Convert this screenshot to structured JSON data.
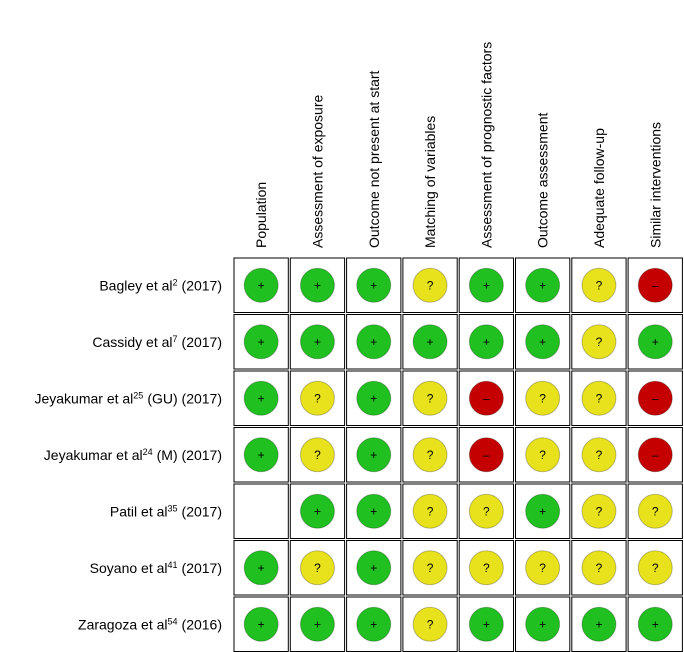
{
  "table": {
    "columns": [
      "Population",
      "Assessment of exposure",
      "Outcome not present at start",
      "Matching of variables",
      "Assessment of prognostic factors",
      "Outcome assessment",
      "Adequate follow-up",
      "Similar interventions"
    ],
    "rows": [
      {
        "author": "Bagley et al",
        "ref": "2",
        "suffix": "(2017)",
        "cells": [
          "+",
          "+",
          "+",
          "?",
          "+",
          "+",
          "?",
          "–"
        ]
      },
      {
        "author": "Cassidy et al",
        "ref": "7",
        "suffix": "(2017)",
        "cells": [
          "+",
          "+",
          "+",
          "+",
          "+",
          "+",
          "?",
          "+"
        ]
      },
      {
        "author": "Jeyakumar et al",
        "ref": "25",
        "suffix": "(GU) (2017)",
        "cells": [
          "+",
          "?",
          "+",
          "?",
          "–",
          "?",
          "?",
          "–"
        ]
      },
      {
        "author": "Jeyakumar et al",
        "ref": "24",
        "suffix": "(M) (2017)",
        "cells": [
          "+",
          "?",
          "+",
          "?",
          "–",
          "?",
          "?",
          "–"
        ]
      },
      {
        "author": "Patil et al",
        "ref": "35",
        "suffix": "(2017)",
        "cells": [
          null,
          "+",
          "+",
          "?",
          "?",
          "+",
          "?",
          "?"
        ]
      },
      {
        "author": "Soyano et al",
        "ref": "41",
        "suffix": "(2017)",
        "cells": [
          "+",
          "?",
          "+",
          "?",
          "?",
          "?",
          "?",
          "?"
        ]
      },
      {
        "author": "Zaragoza et al",
        "ref": "54",
        "suffix": "(2016)",
        "cells": [
          "+",
          "+",
          "+",
          "?",
          "+",
          "+",
          "+",
          "+"
        ]
      }
    ],
    "judgment_colors": {
      "+": "#1fc01f",
      "?": "#e8e21c",
      "–": "#c40000"
    }
  }
}
